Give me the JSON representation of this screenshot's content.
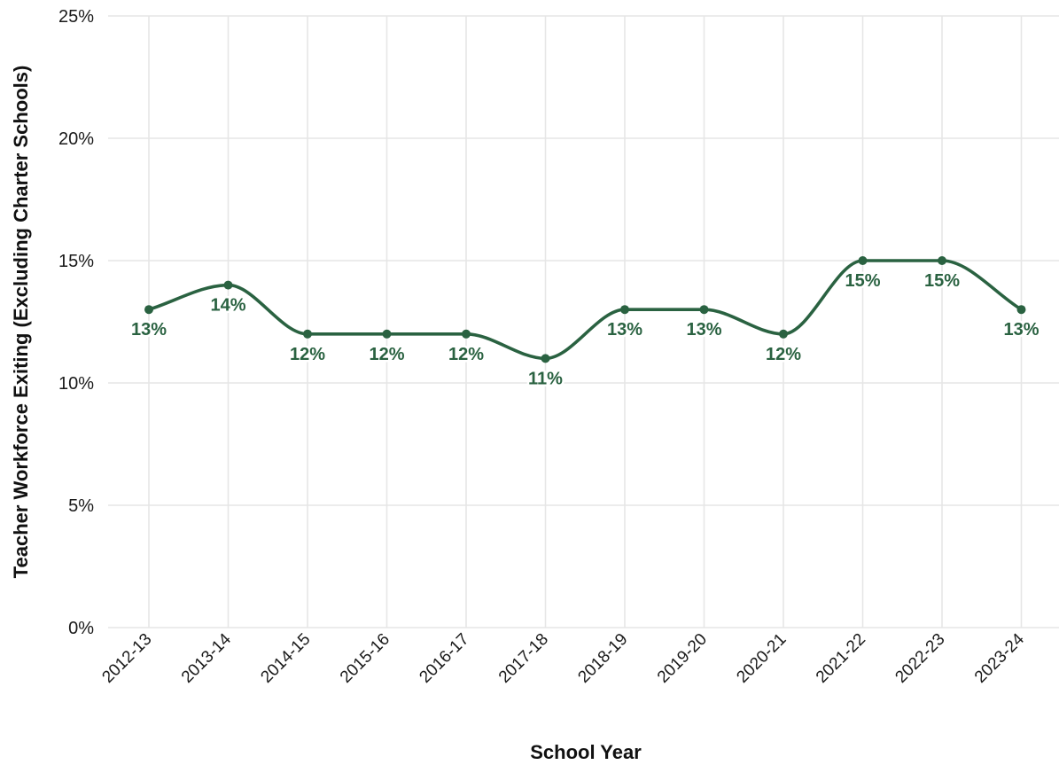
{
  "chart_data": {
    "type": "line",
    "title": "",
    "xlabel": "School Year",
    "ylabel": "Teacher Workforce Exiting (Excluding Charter Schools)",
    "categories": [
      "2012-13",
      "2013-14",
      "2014-15",
      "2015-16",
      "2016-17",
      "2017-18",
      "2018-19",
      "2019-20",
      "2020-21",
      "2021-22",
      "2022-23",
      "2023-24"
    ],
    "series": [
      {
        "values": [
          13,
          14,
          12,
          12,
          12,
          11,
          13,
          13,
          12,
          15,
          15,
          13
        ]
      }
    ],
    "data_labels": [
      "13%",
      "14%",
      "12%",
      "12%",
      "12%",
      "11%",
      "13%",
      "13%",
      "12%",
      "15%",
      "15%",
      "13%"
    ],
    "yticks": [
      0,
      5,
      10,
      15,
      20,
      25
    ],
    "ytick_labels": [
      "0%",
      "5%",
      "10%",
      "15%",
      "20%",
      "25%"
    ],
    "ylim": [
      0,
      25
    ],
    "grid": true,
    "legend": "none",
    "line_style": "smooth",
    "colors": {
      "series": "#2a6241",
      "grid": "#e6e6e6",
      "text": "#1a1a1a"
    }
  }
}
